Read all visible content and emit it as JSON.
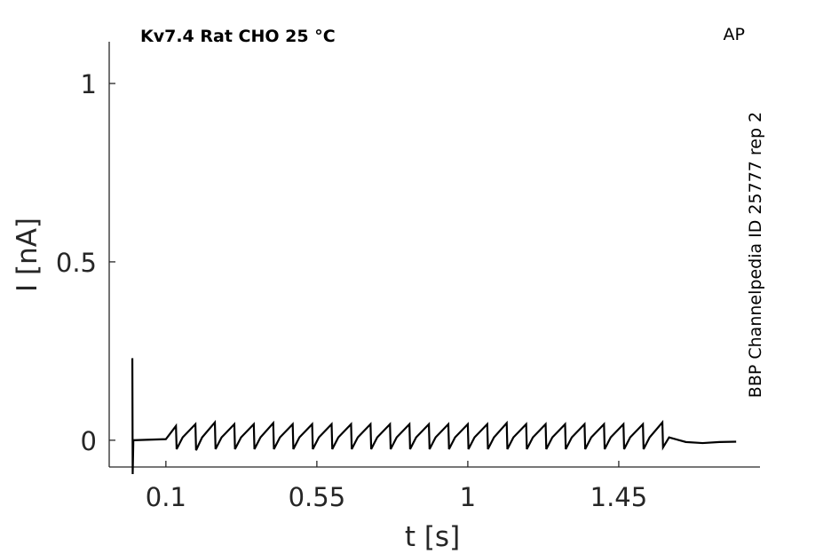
{
  "chart_data": {
    "type": "line",
    "title": "Kv7.4  Rat  CHO  25 °C",
    "label": "AP",
    "source": "BBP Channelpedia ID 25777 rep 2",
    "xlabel": "t [s]",
    "ylabel": "I [nA]",
    "color": "#000000",
    "xlim": [
      -0.069,
      1.871
    ],
    "ylim": [
      -0.075,
      1.117
    ],
    "xticks": [
      0.1,
      0.55,
      1,
      1.45
    ],
    "yticks": [
      0,
      0.5,
      1
    ],
    "x": [
      0,
      0.001,
      0.003,
      0.1,
      0.13,
      0.132,
      0.15,
      0.188,
      0.19,
      0.208,
      0.246,
      0.248,
      0.266,
      0.304,
      0.306,
      0.324,
      0.362,
      0.364,
      0.382,
      0.42,
      0.422,
      0.44,
      0.478,
      0.48,
      0.498,
      0.536,
      0.538,
      0.556,
      0.594,
      0.596,
      0.614,
      0.652,
      0.654,
      0.672,
      0.71,
      0.712,
      0.73,
      0.768,
      0.77,
      0.788,
      0.826,
      0.828,
      0.846,
      0.884,
      0.886,
      0.904,
      0.942,
      0.944,
      0.962,
      1.0,
      1.002,
      1.02,
      1.058,
      1.06,
      1.078,
      1.116,
      1.118,
      1.136,
      1.174,
      1.176,
      1.194,
      1.232,
      1.234,
      1.252,
      1.29,
      1.292,
      1.31,
      1.348,
      1.35,
      1.368,
      1.406,
      1.408,
      1.426,
      1.464,
      1.466,
      1.484,
      1.522,
      1.524,
      1.542,
      1.58,
      1.582,
      1.6,
      1.65,
      1.7,
      1.75,
      1.8
    ],
    "values": [
      0.23,
      -0.095,
      0,
      0.003,
      0.04,
      -0.025,
      0.008,
      0.045,
      -0.028,
      0.008,
      0.05,
      -0.025,
      0.008,
      0.045,
      -0.025,
      0.008,
      0.045,
      -0.025,
      0.008,
      0.048,
      -0.025,
      0.008,
      0.045,
      -0.025,
      0.008,
      0.045,
      -0.025,
      0.008,
      0.045,
      -0.025,
      0.008,
      0.045,
      -0.025,
      0.008,
      0.045,
      -0.025,
      0.008,
      0.045,
      -0.025,
      0.008,
      0.045,
      -0.025,
      0.008,
      0.045,
      -0.025,
      0.008,
      0.045,
      -0.025,
      0.008,
      0.045,
      -0.025,
      0.008,
      0.045,
      -0.025,
      0.008,
      0.048,
      -0.025,
      0.008,
      0.045,
      -0.025,
      0.008,
      0.045,
      -0.025,
      0.008,
      0.045,
      -0.025,
      0.008,
      0.045,
      -0.025,
      0.008,
      0.045,
      -0.025,
      0.008,
      0.045,
      -0.025,
      0.008,
      0.045,
      -0.025,
      0.008,
      0.05,
      -0.02,
      0.008,
      -0.005,
      -0.008,
      -0.005,
      -0.004
    ]
  }
}
